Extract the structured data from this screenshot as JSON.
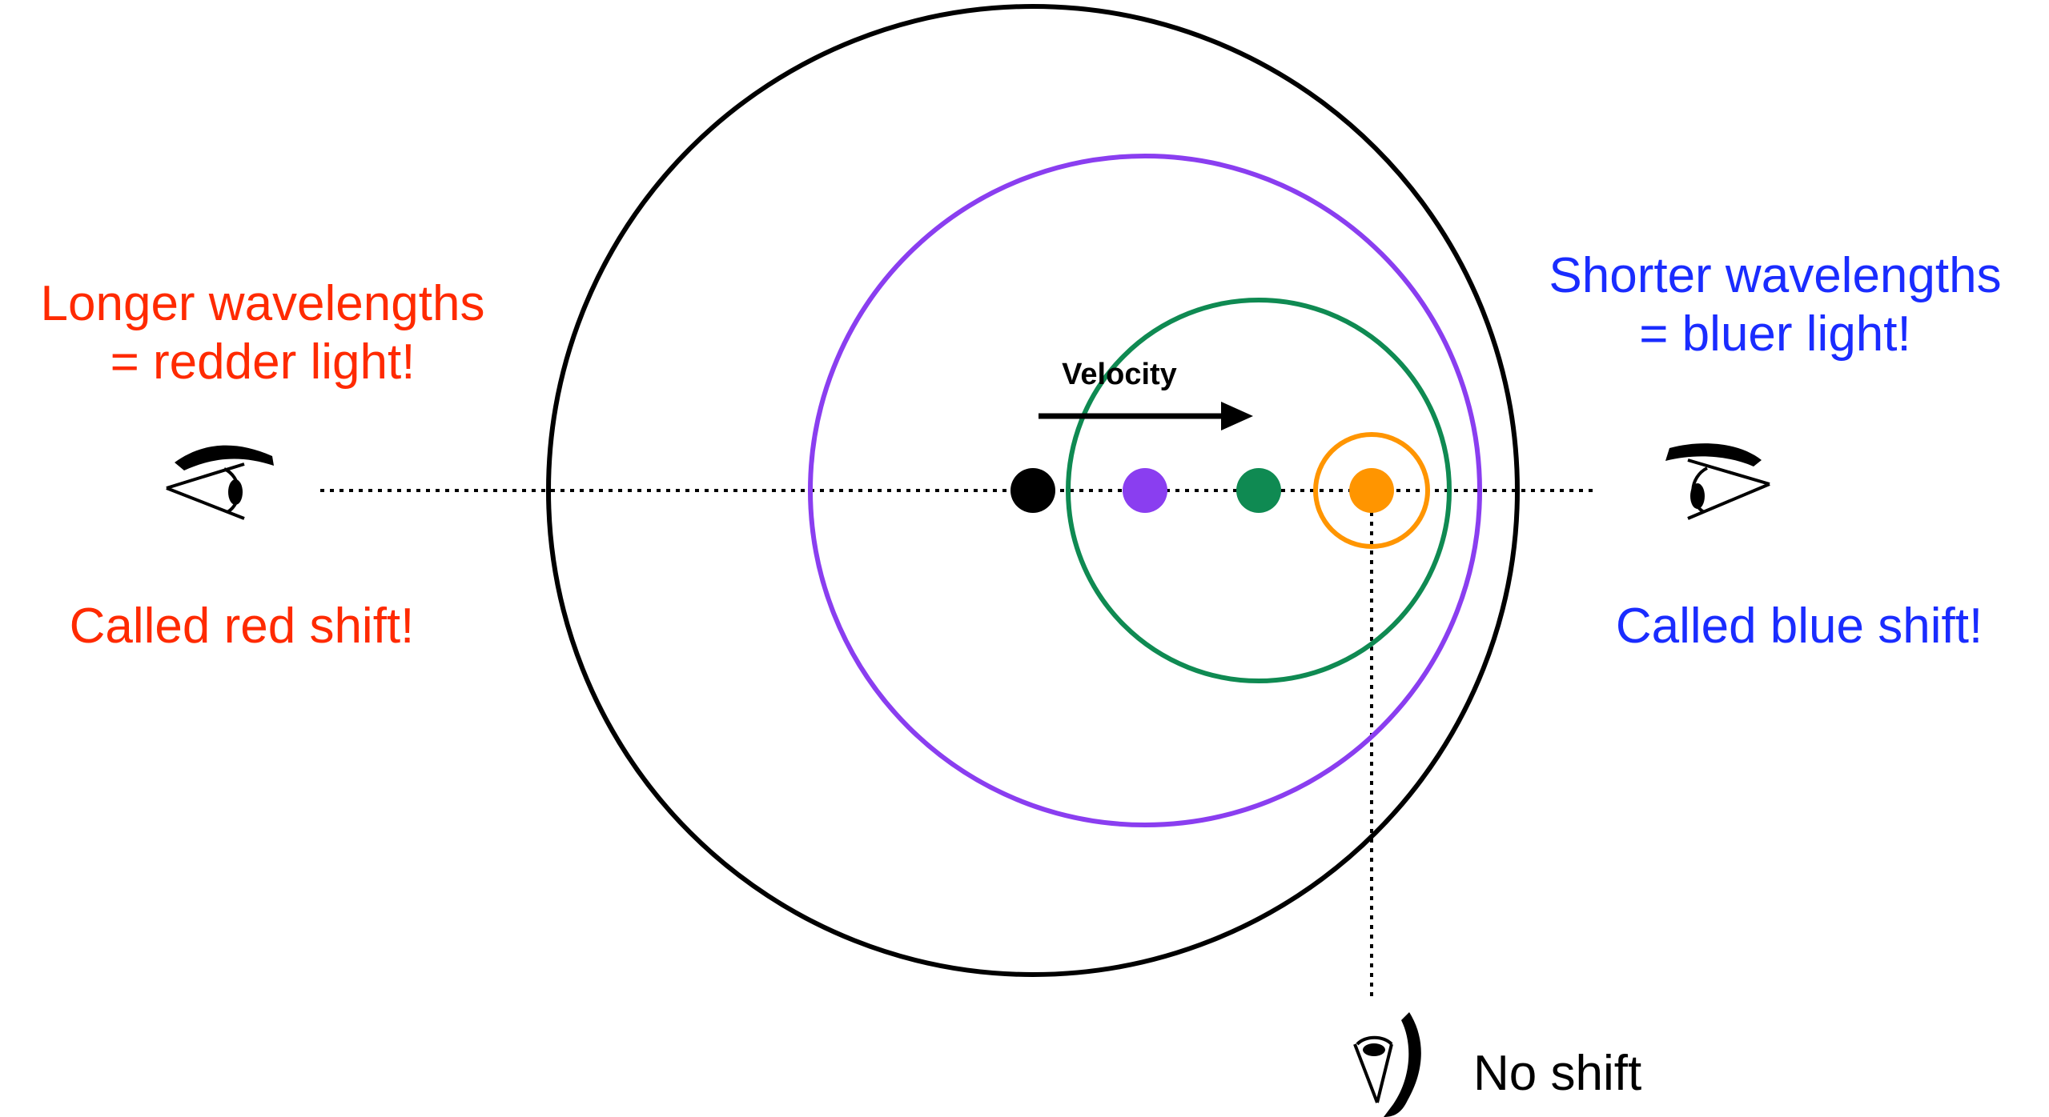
{
  "colors": {
    "red": "#ff2a00",
    "blue": "#1a2cff",
    "black": "#000000",
    "purple": "#8a3ef0",
    "green": "#0f8a52",
    "orange": "#ff9500"
  },
  "labels": {
    "left_line1": "Longer wavelengths",
    "left_line2": "= redder light!",
    "left_shift": "Called red shift!",
    "right_line1": "Shorter wavelengths",
    "right_line2": "= bluer light!",
    "right_shift": "Called blue shift!",
    "bottom": "No shift",
    "velocity": "Velocity"
  },
  "icons": [
    "eye-left-icon",
    "eye-right-icon",
    "eye-bottom-icon",
    "velocity-arrow-icon"
  ]
}
